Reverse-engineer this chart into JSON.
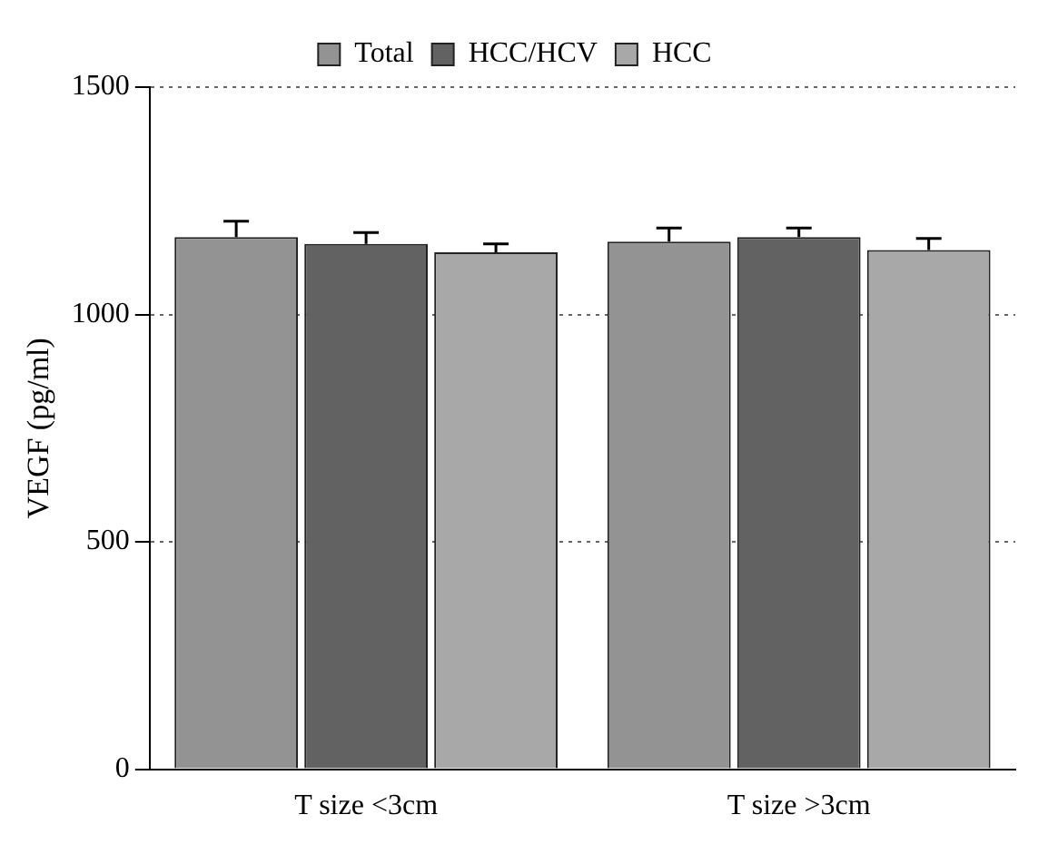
{
  "chart_data": {
    "type": "bar",
    "ylabel": "VEGF (pg/ml)",
    "categories": [
      "T size <3cm",
      "T size >3cm"
    ],
    "series": [
      {
        "name": "Total",
        "color": "#939393",
        "values": [
          1170,
          1160
        ],
        "errors": [
          [
            1170,
            1205
          ],
          [
            1160,
            1190
          ]
        ]
      },
      {
        "name": "HCC/HCV",
        "color": "#626262",
        "values": [
          1155,
          1170
        ],
        "errors": [
          [
            1155,
            1180
          ],
          [
            1170,
            1190
          ]
        ]
      },
      {
        "name": "HCC",
        "color": "#a8a8a9",
        "values": [
          1137,
          1142
        ],
        "errors": [
          [
            1137,
            1155
          ],
          [
            1142,
            1167
          ]
        ]
      }
    ],
    "ylim": [
      0,
      1500
    ],
    "yticks": [
      0,
      500,
      1000,
      1500
    ],
    "grid": "y",
    "legend": "top"
  }
}
